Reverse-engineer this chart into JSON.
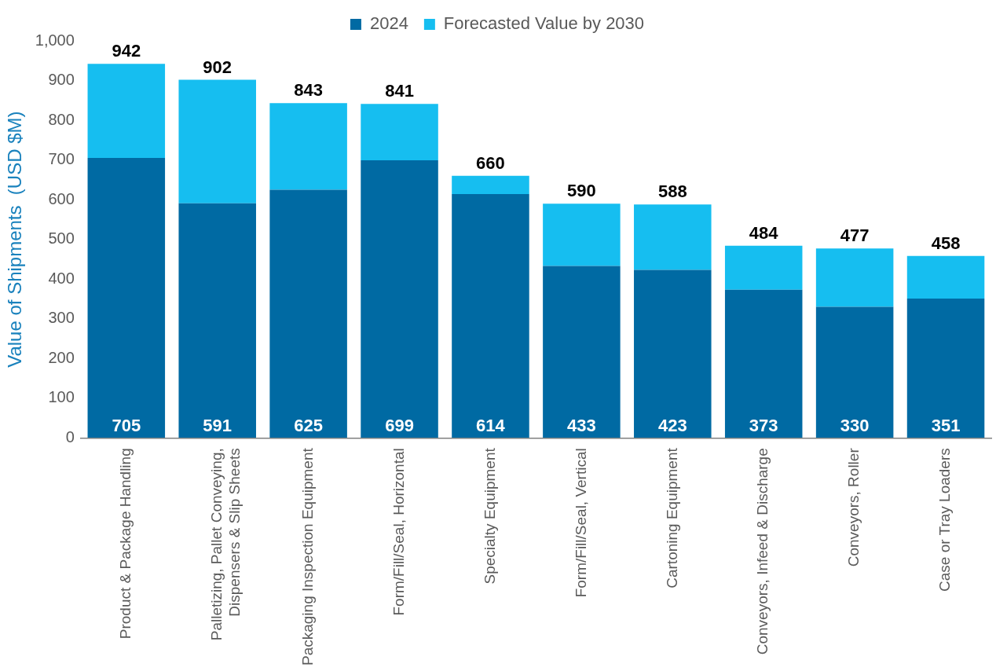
{
  "chart_data": {
    "type": "bar",
    "stacked": true,
    "ylabel": "Value of Shipments  (USD $M)",
    "categories": [
      "Product & Package Handling",
      "Palletizing, Pallet Conveying, Dispensers & Slip Sheets",
      "Packaging Inspection Equipment",
      "Form/Fill/Seal, Horizontal",
      "Specialty Equipment",
      "Form/Fill/Seal, Vertical",
      "Cartoning Equipment",
      "Conveyors, Infeed & Discharge",
      "Conveyors, Roller",
      "Case or Tray Loaders"
    ],
    "series": [
      {
        "name": "2024",
        "color": "#006aa3",
        "values": [
          705,
          591,
          625,
          699,
          614,
          433,
          423,
          373,
          330,
          351
        ],
        "value_labels": [
          "705",
          "591",
          "625",
          "699",
          "614",
          "433",
          "423",
          "373",
          "330",
          "351"
        ]
      },
      {
        "name": "Forecasted Value by 2030",
        "color": "#16bef0",
        "values": [
          237,
          311,
          218,
          142,
          46,
          157,
          165,
          111,
          147,
          107
        ]
      }
    ],
    "totals": [
      "942",
      "902",
      "843",
      "841",
      "660",
      "590",
      "588",
      "484",
      "477",
      "458"
    ],
    "ylim": [
      0,
      1000
    ],
    "yticks": [
      0,
      100,
      200,
      300,
      400,
      500,
      600,
      700,
      800,
      900,
      {
        "value": 1000,
        "label": "1,000"
      }
    ],
    "grid": false,
    "legend": "top"
  }
}
